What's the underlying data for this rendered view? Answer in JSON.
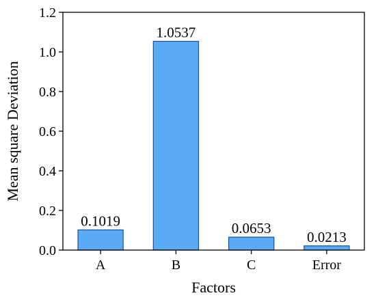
{
  "chart_data": {
    "type": "bar",
    "categories": [
      "A",
      "B",
      "C",
      "Error"
    ],
    "values": [
      0.1019,
      1.0537,
      0.0653,
      0.0213
    ],
    "data_labels": [
      "0.1019",
      "1.0537",
      "0.0653",
      "0.0213"
    ],
    "xlabel": "Factors",
    "ylabel": "Mean square Deviation",
    "ylim": [
      0,
      1.2
    ],
    "yticks": [
      0.0,
      0.2,
      0.4,
      0.6,
      0.8,
      1.0,
      1.2
    ],
    "ytick_labels": [
      "0.0",
      "0.2",
      "0.4",
      "0.6",
      "0.8",
      "1.0",
      "1.2"
    ],
    "grid": false,
    "bar_color": "#5aaaf5",
    "bar_edge_color": "#1f4f8f"
  }
}
